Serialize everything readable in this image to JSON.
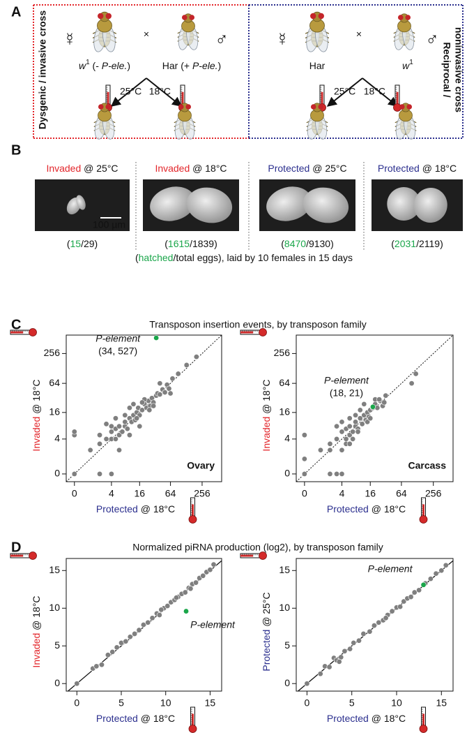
{
  "panel_a": {
    "letter": "A",
    "left_cross": {
      "title_lines": [
        "Dysgenic / invasive cross"
      ],
      "female_symbol": "☿",
      "cross_symbol": "×",
      "male_symbol": "♂",
      "female_label": [
        {
          "text": "w",
          "style": "italic"
        },
        {
          "text": "1",
          "style": "sup"
        },
        {
          "text": " (- "
        },
        {
          "text": "P-ele.",
          "style": "italic"
        },
        {
          "text": ")"
        }
      ],
      "male_label": [
        {
          "text": "Har (+ "
        },
        {
          "text": "P-ele.",
          "style": "italic"
        },
        {
          "text": ")"
        }
      ],
      "temp_left": "25°C",
      "temp_right": "18°C"
    },
    "right_cross": {
      "title_lines": [
        "Reciprocal /",
        "noninvasive cross"
      ],
      "female_symbol": "☿",
      "cross_symbol": "×",
      "male_symbol": "♂",
      "female_label": [
        {
          "text": "Har"
        }
      ],
      "male_label": [
        {
          "text": "w",
          "style": "italic"
        },
        {
          "text": "1",
          "style": "sup"
        }
      ],
      "temp_left": "25°C",
      "temp_right": "18°C"
    }
  },
  "panel_b": {
    "letter": "B",
    "samples": [
      {
        "label": [
          {
            "text": "Invaded",
            "color": "#e3262b"
          },
          {
            "text": " @ 25°C"
          }
        ],
        "counts": [
          {
            "text": "("
          },
          {
            "text": "15",
            "color": "#1aa64a"
          },
          {
            "text": "/29)"
          }
        ]
      },
      {
        "label": [
          {
            "text": "Invaded",
            "color": "#e3262b"
          },
          {
            "text": " @ 18°C"
          }
        ],
        "counts": [
          {
            "text": "("
          },
          {
            "text": "1615",
            "color": "#1aa64a"
          },
          {
            "text": "/1839)"
          }
        ]
      },
      {
        "label": [
          {
            "text": "Protected",
            "color": "#2b2f8e"
          },
          {
            "text": " @ 25°C"
          }
        ],
        "counts": [
          {
            "text": "("
          },
          {
            "text": "8470",
            "color": "#1aa64a"
          },
          {
            "text": "/9130)"
          }
        ]
      },
      {
        "label": [
          {
            "text": "Protected",
            "color": "#2b2f8e"
          },
          {
            "text": " @ 18°C"
          }
        ],
        "counts": [
          {
            "text": "("
          },
          {
            "text": "2031",
            "color": "#1aa64a"
          },
          {
            "text": "/2119)"
          }
        ]
      }
    ],
    "scale_bar": "100 µm",
    "footnote": [
      {
        "text": "("
      },
      {
        "text": "hatched",
        "color": "#1aa64a"
      },
      {
        "text": "/total eggs), laid by 10 females in 15 days"
      }
    ]
  },
  "panel_c": {
    "letter": "C",
    "title": "Transposon insertion events, by transposon family"
  },
  "panel_d": {
    "letter": "D",
    "title": "Normalized piRNA production (log2), by transposon family"
  },
  "chart_data": [
    {
      "type": "scatter",
      "ylabel": [
        {
          "text": "Invaded",
          "color": "#e3262b"
        },
        {
          "text": " @ 18°C"
        }
      ],
      "xlabel": [
        {
          "text": "Protected",
          "color": "#2b2f8e"
        },
        {
          "text": " @ 18°C"
        }
      ],
      "xscale": "log1p",
      "yscale": "log1p",
      "xlim": [
        -0.3,
        600
      ],
      "ylim": [
        -0.3,
        600
      ],
      "xticks": [
        0,
        4,
        16,
        64,
        256
      ],
      "yticks": [
        0,
        4,
        16,
        64,
        256
      ],
      "diagonal": "dotted",
      "corner_label": "Ovary",
      "series": [
        {
          "color": "#7f7f7f",
          "x": [
            0,
            0,
            0,
            2,
            4,
            1,
            2,
            2,
            3,
            4,
            4,
            4,
            5,
            5,
            6,
            6,
            7,
            8,
            8,
            9,
            10,
            11,
            12,
            13,
            14,
            15,
            16,
            18,
            20,
            22,
            24,
            26,
            28,
            30,
            34,
            36,
            40,
            45,
            50,
            55,
            60,
            70,
            90,
            130,
            200,
            3,
            5,
            8,
            10,
            12,
            6,
            10,
            16,
            64,
            40,
            20,
            25,
            30,
            18,
            14
          ],
          "values": [
            0,
            5,
            6,
            0,
            0,
            2,
            3,
            5,
            4,
            4,
            6,
            8,
            4,
            7,
            5,
            8,
            6,
            8,
            10,
            7,
            12,
            10,
            14,
            11,
            16,
            20,
            14,
            18,
            24,
            20,
            28,
            22,
            32,
            26,
            36,
            40,
            38,
            48,
            42,
            60,
            50,
            80,
            100,
            150,
            220,
            9,
            12,
            14,
            20,
            24,
            2,
            5,
            8,
            40,
            64,
            30,
            18,
            22,
            26,
            12
          ]
        },
        {
          "color": "#1aa64a",
          "x": [
            34
          ],
          "values": [
            527
          ]
        }
      ],
      "annotations": [
        {
          "text": "P-element",
          "style": "italic",
          "color": "#1aa64a"
        },
        {
          "text": "(34, 527)",
          "color": "#1aa64a"
        }
      ]
    },
    {
      "type": "scatter",
      "ylabel": [
        {
          "text": "Invaded",
          "color": "#e3262b"
        },
        {
          "text": " @ 18°C"
        }
      ],
      "xlabel": [
        {
          "text": "Protected",
          "color": "#2b2f8e"
        },
        {
          "text": " @ 18°C"
        }
      ],
      "xscale": "log1p",
      "yscale": "log1p",
      "xlim": [
        -0.3,
        600
      ],
      "ylim": [
        -0.3,
        600
      ],
      "xticks": [
        0,
        4,
        16,
        64,
        256
      ],
      "yticks": [
        0,
        4,
        16,
        64,
        256
      ],
      "diagonal": "dotted",
      "corner_label": "Carcass",
      "series": [
        {
          "color": "#7f7f7f",
          "x": [
            0,
            0,
            2,
            3,
            4,
            0,
            1,
            2,
            3,
            4,
            5,
            5,
            6,
            6,
            7,
            8,
            8,
            9,
            10,
            11,
            12,
            13,
            14,
            15,
            16,
            18,
            20,
            22,
            25,
            28,
            32,
            20,
            3,
            4,
            6,
            8,
            10,
            12,
            100,
            120,
            2,
            5,
            7,
            9,
            4,
            6,
            14,
            16,
            24,
            30
          ],
          "values": [
            0,
            5,
            0,
            0,
            0,
            1,
            2,
            3,
            4,
            6,
            4,
            7,
            5,
            8,
            6,
            8,
            10,
            7,
            12,
            9,
            14,
            11,
            16,
            13,
            18,
            20,
            24,
            20,
            28,
            22,
            36,
            30,
            8,
            10,
            12,
            14,
            18,
            24,
            64,
            100,
            2,
            3,
            4,
            6,
            2,
            3,
            10,
            12,
            30,
            26
          ]
        },
        {
          "color": "#1aa64a",
          "x": [
            18
          ],
          "values": [
            21
          ]
        }
      ],
      "annotations": [
        {
          "text": "P-element",
          "style": "italic",
          "color": "#1aa64a"
        },
        {
          "text": "(18, 21)",
          "color": "#1aa64a"
        }
      ]
    },
    {
      "type": "scatter",
      "ylabel": [
        {
          "text": "Invaded",
          "color": "#e3262b"
        },
        {
          "text": " @ 18°C"
        }
      ],
      "xlabel": [
        {
          "text": "Protected",
          "color": "#2b2f8e"
        },
        {
          "text": " @ 18°C"
        }
      ],
      "xscale": "linear",
      "yscale": "linear",
      "xlim": [
        -1.2,
        16.3
      ],
      "ylim": [
        -1.0,
        16.6
      ],
      "xticks": [
        0,
        5,
        10,
        15
      ],
      "yticks": [
        0,
        5,
        10,
        15
      ],
      "diagonal": "solid",
      "series": [
        {
          "color": "#7f7f7f",
          "x": [
            0,
            1.8,
            2.2,
            2.8,
            3.5,
            4,
            4.5,
            5,
            5.5,
            6,
            6.5,
            7,
            7.5,
            8,
            8.5,
            9,
            9.3,
            9.8,
            10.2,
            10.6,
            11,
            11.4,
            11.8,
            12.2,
            12.6,
            13,
            13.4,
            13.8,
            14.2,
            14.6,
            15,
            15.4,
            9.5,
            11.2,
            12.8
          ],
          "values": [
            0,
            2,
            2.3,
            2.5,
            3.8,
            4.2,
            4.8,
            5.4,
            5.6,
            6.2,
            6.6,
            7.1,
            7.8,
            8.1,
            8.7,
            9.3,
            9.1,
            10,
            10.3,
            10.8,
            11.1,
            11.5,
            11.9,
            12.1,
            12.7,
            13.2,
            13.4,
            14,
            14.3,
            14.8,
            15.1,
            15.8,
            9.8,
            11.4,
            12.6
          ]
        },
        {
          "color": "#1aa64a",
          "x": [
            12.3
          ],
          "values": [
            9.6
          ]
        }
      ],
      "annotations": [
        {
          "text": "P-element",
          "style": "italic",
          "color": "#1aa64a"
        }
      ]
    },
    {
      "type": "scatter",
      "ylabel": [
        {
          "text": "Protected",
          "color": "#2b2f8e"
        },
        {
          "text": " @ 25°C"
        }
      ],
      "xlabel": [
        {
          "text": "Protected",
          "color": "#2b2f8e"
        },
        {
          "text": " @ 18°C"
        }
      ],
      "xscale": "linear",
      "yscale": "linear",
      "xlim": [
        -1.2,
        16.3
      ],
      "ylim": [
        -1.0,
        16.6
      ],
      "xticks": [
        0,
        5,
        10,
        15
      ],
      "yticks": [
        0,
        5,
        10,
        15
      ],
      "diagonal": "solid",
      "series": [
        {
          "color": "#7f7f7f",
          "x": [
            0,
            1.5,
            2,
            2.5,
            3,
            3.3,
            3.8,
            4.2,
            4.8,
            5.2,
            5.8,
            6.3,
            7,
            7.5,
            8,
            8.5,
            9,
            9.5,
            10,
            10.4,
            10.8,
            11.2,
            11.6,
            12,
            12.5,
            13.2,
            13.8,
            14.4,
            15,
            15.5,
            3.6,
            8.8
          ],
          "values": [
            0,
            1.3,
            2.3,
            2.2,
            3.4,
            3.1,
            3.5,
            4.3,
            4.6,
            5.4,
            5.7,
            6.6,
            6.9,
            7.7,
            8.1,
            8.4,
            9.1,
            9.6,
            10.1,
            10.2,
            10.9,
            11.3,
            11.5,
            12.1,
            12.4,
            13.3,
            13.9,
            14.6,
            15,
            15.7,
            2.9,
            8.7
          ]
        },
        {
          "color": "#1aa64a",
          "x": [
            13.0
          ],
          "values": [
            13.1
          ]
        }
      ],
      "annotations": [
        {
          "text": "P-element",
          "style": "italic",
          "color": "#1aa64a"
        }
      ]
    }
  ]
}
